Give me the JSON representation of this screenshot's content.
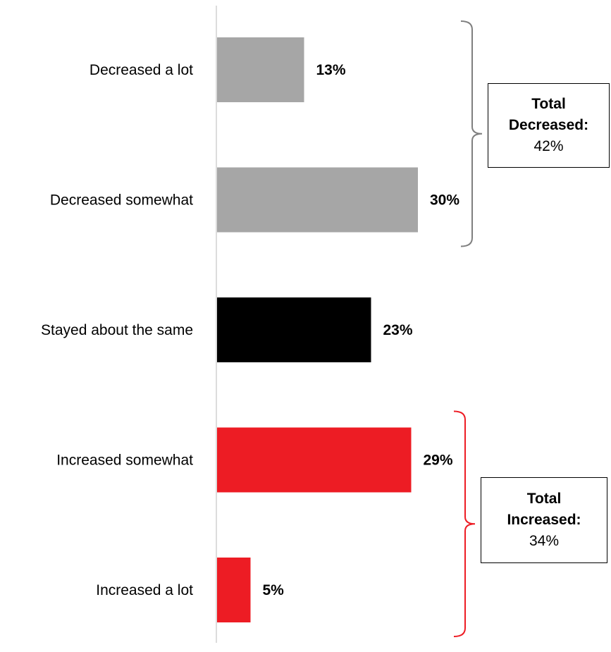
{
  "chart_data": {
    "type": "bar",
    "orientation": "horizontal",
    "categories": [
      "Decreased a lot",
      "Decreased somewhat",
      "Stayed about the same",
      "Increased somewhat",
      "Increased a lot"
    ],
    "values": [
      13,
      30,
      23,
      29,
      5
    ],
    "value_labels": [
      "13%",
      "30%",
      "23%",
      "29%",
      "5%"
    ],
    "bar_colors": [
      "#a6a6a6",
      "#a6a6a6",
      "#000000",
      "#ed1c24",
      "#ed1c24"
    ],
    "xlim": [
      0,
      100
    ],
    "grid": false,
    "legend": "none",
    "groups": [
      {
        "title_lines": [
          "Total",
          "Decreased:"
        ],
        "value": "42%",
        "categories": [
          "Decreased a lot",
          "Decreased somewhat"
        ],
        "bracket_color": "#7f7f7f"
      },
      {
        "title_lines": [
          "Total",
          "Increased:"
        ],
        "value": "34%",
        "categories": [
          "Increased somewhat",
          "Increased a lot"
        ],
        "bracket_color": "#ed1c24"
      }
    ]
  },
  "colors": {
    "gray": "#a6a6a6",
    "black": "#000000",
    "red": "#ed1c24",
    "axis": "#d0d0d0"
  }
}
